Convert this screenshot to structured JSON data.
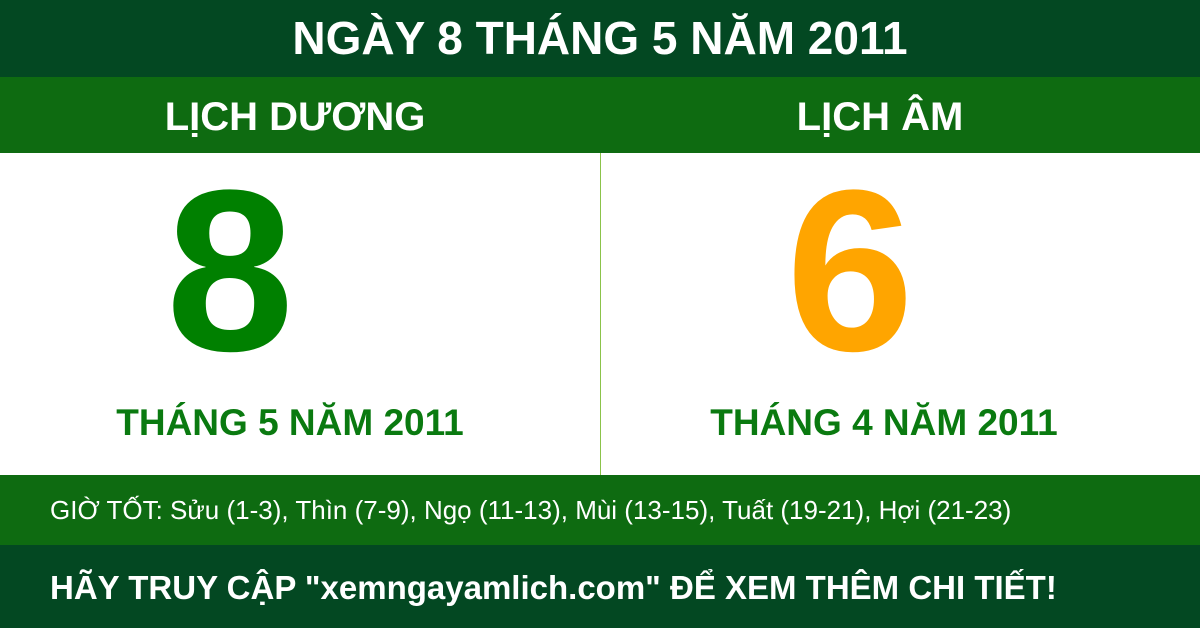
{
  "title": "NGÀY 8 THÁNG 5 NĂM 2011",
  "solar": {
    "heading": "LỊCH DƯƠNG",
    "day": "8",
    "month_year": "THÁNG 5 NĂM 2011",
    "color": "#008000"
  },
  "lunar": {
    "heading": "LỊCH ÂM",
    "day": "6",
    "month_year": "THÁNG 4 NĂM 2011",
    "color": "#ffa500"
  },
  "good_hours": "GIỜ TỐT: Sửu (1-3), Thìn (7-9), Ngọ (11-13), Mùi (13-15), Tuất (19-21), Hợi (21-23)",
  "footer": "HÃY TRUY CẬP \"xemngayamlich.com\" ĐỂ XEM THÊM CHI TIẾT!"
}
